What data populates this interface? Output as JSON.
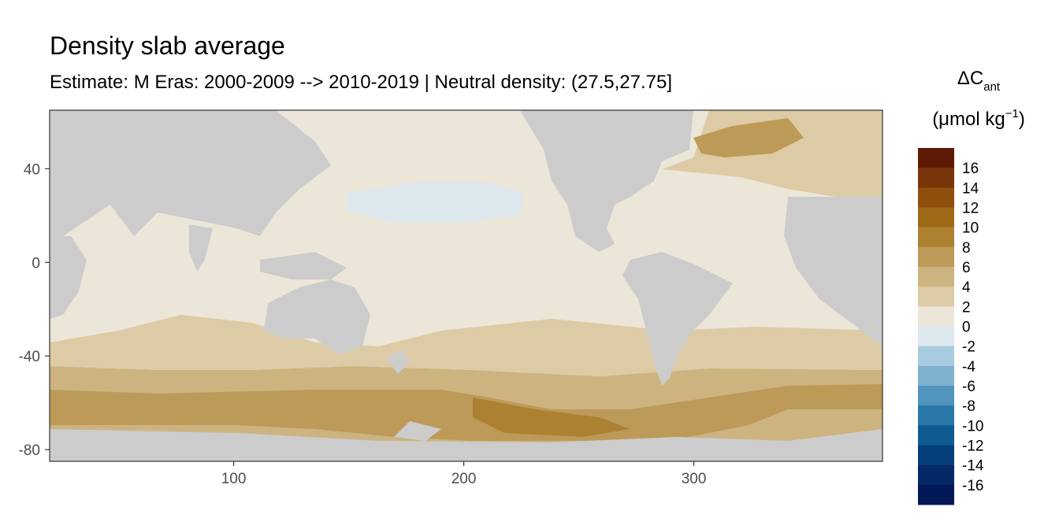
{
  "chart_data": {
    "type": "heatmap",
    "title": "Density slab average",
    "subtitle": "Estimate: M Eras: 2000-2009 --> 2010-2019 | Neutral density: (27.5,27.75]",
    "legend": {
      "title_symbol": "ΔC",
      "title_subscript": "ant",
      "unit_prefix": "(μmol kg",
      "unit_superscript": "−1",
      "unit_suffix": ")",
      "placement": "right",
      "breaks": [
        16,
        14,
        12,
        10,
        8,
        6,
        4,
        2,
        0,
        -2,
        -4,
        -6,
        -8,
        -10,
        -12,
        -14,
        -16
      ],
      "colors": [
        "#5e1a05",
        "#7a340a",
        "#8e4e0d",
        "#9e6a18",
        "#ad8132",
        "#bd9a58",
        "#cdb380",
        "#ddcba6",
        "#ece6d9",
        "#dce7ee",
        "#a8cbe0",
        "#7fb0d0",
        "#5094bd",
        "#2a78a8",
        "#0f5b91",
        "#043f7c",
        "#032967",
        "#021857"
      ]
    },
    "x_axis": {
      "ticks": [
        100,
        200,
        300
      ],
      "range": [
        20,
        382
      ]
    },
    "y_axis": {
      "ticks": [
        40,
        0,
        -40,
        -80
      ],
      "range": [
        -85,
        65
      ]
    },
    "grid": false,
    "land_color": "#cccccc",
    "no_data_color": "#ffffff"
  }
}
